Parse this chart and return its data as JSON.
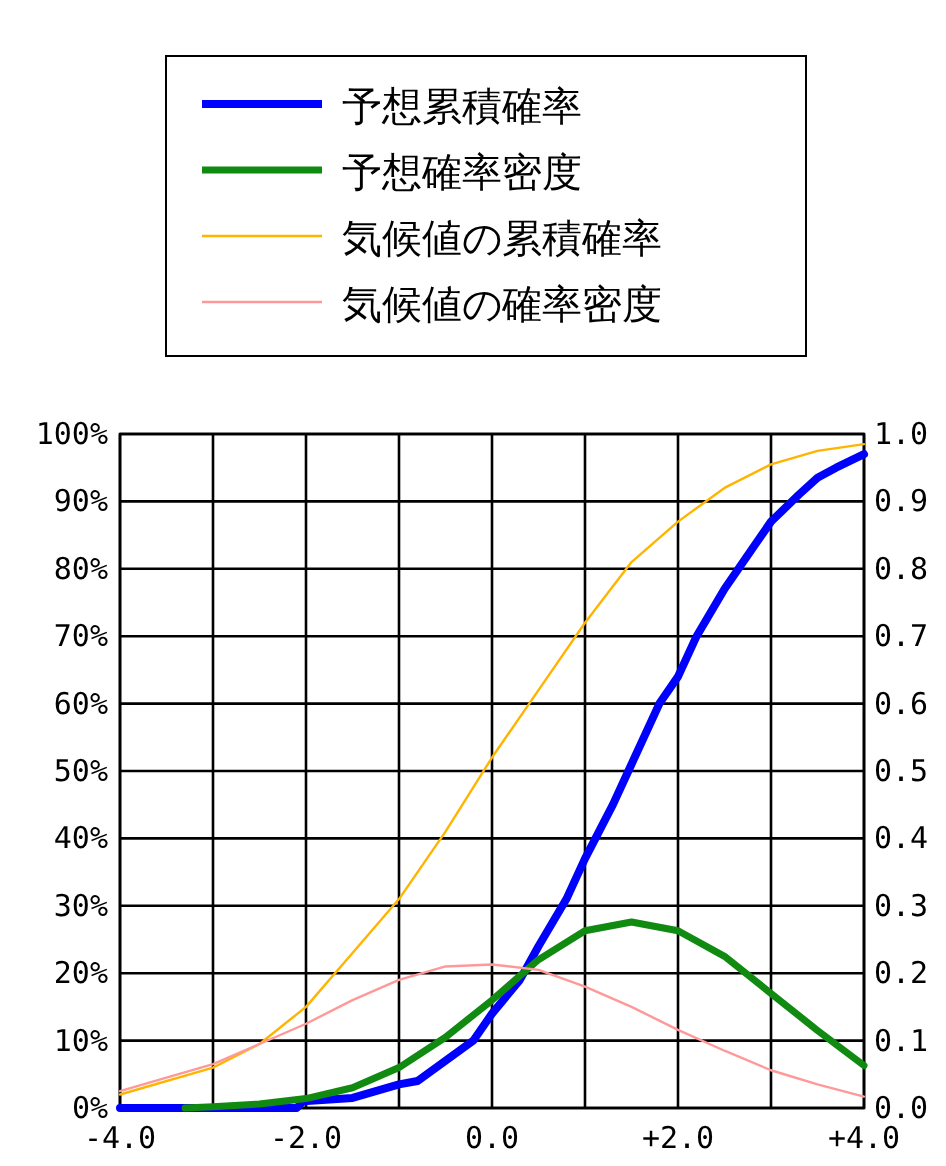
{
  "chart_data": {
    "type": "line",
    "legend": "top",
    "grid": true,
    "marker": "none",
    "line_style": "solid",
    "xlim": [
      -4,
      4
    ],
    "xticks": [
      {
        "value": -4,
        "label": "-4.0"
      },
      {
        "value": -3,
        "label": null
      },
      {
        "value": -2,
        "label": "-2.0"
      },
      {
        "value": -1,
        "label": null
      },
      {
        "value": 0,
        "label": "0.0"
      },
      {
        "value": 1,
        "label": null
      },
      {
        "value": 2,
        "label": "+2.0"
      },
      {
        "value": 3,
        "label": null
      },
      {
        "value": 4,
        "label": "+4.0"
      }
    ],
    "ylim": [
      0,
      100
    ],
    "yticks": [
      {
        "value": 0,
        "label": "0%"
      },
      {
        "value": 10,
        "label": "10%"
      },
      {
        "value": 20,
        "label": "20%"
      },
      {
        "value": 30,
        "label": "30%"
      },
      {
        "value": 40,
        "label": "40%"
      },
      {
        "value": 50,
        "label": "50%"
      },
      {
        "value": 60,
        "label": "60%"
      },
      {
        "value": 70,
        "label": "70%"
      },
      {
        "value": 80,
        "label": "80%"
      },
      {
        "value": 90,
        "label": "90%"
      },
      {
        "value": 100,
        "label": "100%"
      }
    ],
    "y2lim": [
      0,
      1
    ],
    "y2ticks": [
      {
        "value": 0,
        "label": "0.0"
      },
      {
        "value": 0.1,
        "label": "0.1"
      },
      {
        "value": 0.2,
        "label": "0.2"
      },
      {
        "value": 0.3,
        "label": "0.3"
      },
      {
        "value": 0.4,
        "label": "0.4"
      },
      {
        "value": 0.5,
        "label": "0.5"
      },
      {
        "value": 0.6,
        "label": "0.6"
      },
      {
        "value": 0.7,
        "label": "0.7"
      },
      {
        "value": 0.8,
        "label": "0.8"
      },
      {
        "value": 0.9,
        "label": "0.9"
      },
      {
        "value": 1,
        "label": "1.0"
      }
    ],
    "series": [
      {
        "name": "予想累積確率",
        "color": "#0000ff",
        "x": [
          -4,
          -3,
          -2.1,
          -2.03,
          -1.5,
          -1,
          -0.8,
          -0.5,
          -0.2,
          0,
          0.3,
          0.5,
          0.8,
          1,
          1.3,
          1.5,
          1.8,
          2,
          2.2,
          2.5,
          2.8,
          3,
          3.3,
          3.5,
          3.7,
          4
        ],
        "values": [
          0,
          0,
          0,
          1,
          1.5,
          3.5,
          4,
          7,
          10,
          14,
          19,
          24,
          31,
          37,
          45,
          51,
          60,
          64,
          70,
          77,
          83,
          87,
          91,
          93.5,
          95,
          97
        ]
      },
      {
        "name": "予想確率密度",
        "color": "#108a10",
        "axis": "y2",
        "x": [
          -3.3,
          -3,
          -2.5,
          -2,
          -1.5,
          -1,
          -0.5,
          0,
          0.5,
          1,
          1.5,
          2,
          2.5,
          3,
          3.5,
          4
        ],
        "values": [
          0,
          0.002,
          0.006,
          0.014,
          0.03,
          0.06,
          0.105,
          0.16,
          0.22,
          0.263,
          0.276,
          0.263,
          0.225,
          0.17,
          0.115,
          0.063
        ]
      },
      {
        "name": "気候値の累積確率",
        "color": "#ffb400",
        "x": [
          -4,
          -3,
          -2.5,
          -2,
          -1.5,
          -1,
          -0.5,
          0,
          0.5,
          1,
          1.5,
          2,
          2.5,
          3,
          3.5,
          4
        ],
        "values": [
          2,
          6,
          9.5,
          15,
          23,
          31,
          41,
          52,
          62,
          72,
          81,
          87,
          92,
          95.5,
          97.5,
          98.5
        ]
      },
      {
        "name": "気候値の確率密度",
        "color": "#ff9999",
        "axis": "y2",
        "x": [
          -4,
          -3.5,
          -3,
          -2.5,
          -2,
          -1.5,
          -1,
          -0.5,
          0,
          0.5,
          1,
          1.5,
          2,
          2.5,
          3,
          3.5,
          4
        ],
        "values": [
          0.025,
          0.045,
          0.065,
          0.095,
          0.125,
          0.16,
          0.19,
          0.21,
          0.213,
          0.205,
          0.18,
          0.15,
          0.116,
          0.085,
          0.056,
          0.035,
          0.017
        ]
      }
    ]
  }
}
